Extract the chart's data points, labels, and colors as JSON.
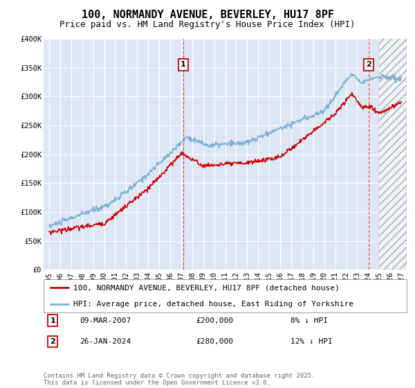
{
  "title": "100, NORMANDY AVENUE, BEVERLEY, HU17 8PF",
  "subtitle": "Price paid vs. HM Land Registry's House Price Index (HPI)",
  "ylim": [
    0,
    400000
  ],
  "yticks": [
    0,
    50000,
    100000,
    150000,
    200000,
    250000,
    300000,
    350000,
    400000
  ],
  "ytick_labels": [
    "£0",
    "£50K",
    "£100K",
    "£150K",
    "£200K",
    "£250K",
    "£300K",
    "£350K",
    "£400K"
  ],
  "xtick_years": [
    1995,
    1996,
    1997,
    1998,
    1999,
    2000,
    2001,
    2002,
    2003,
    2004,
    2005,
    2006,
    2007,
    2008,
    2009,
    2010,
    2011,
    2012,
    2013,
    2014,
    2015,
    2016,
    2017,
    2018,
    2019,
    2020,
    2021,
    2022,
    2023,
    2024,
    2025,
    2026,
    2027
  ],
  "xlim_left": 1994.5,
  "xlim_right": 2027.5,
  "plot_bg_color": "#dce6f5",
  "fig_bg_color": "#ffffff",
  "grid_color": "#ffffff",
  "line_red_color": "#cc0000",
  "line_blue_color": "#7ab0d4",
  "marker1_x": 2007.18,
  "marker1_y": 200000,
  "marker2_x": 2024.07,
  "marker2_y": 280000,
  "hatch_start": 2025.0,
  "legend_line1": "100, NORMANDY AVENUE, BEVERLEY, HU17 8PF (detached house)",
  "legend_line2": "HPI: Average price, detached house, East Riding of Yorkshire",
  "marker1_date": "09-MAR-2007",
  "marker1_price": "£200,000",
  "marker1_hpi": "8% ↓ HPI",
  "marker2_date": "26-JAN-2024",
  "marker2_price": "£280,000",
  "marker2_hpi": "12% ↓ HPI",
  "footer": "Contains HM Land Registry data © Crown copyright and database right 2025.\nThis data is licensed under the Open Government Licence v3.0.",
  "title_fontsize": 11,
  "subtitle_fontsize": 9,
  "tick_fontsize": 7.5,
  "legend_fontsize": 8,
  "ann_fontsize": 8,
  "footer_fontsize": 6.5
}
